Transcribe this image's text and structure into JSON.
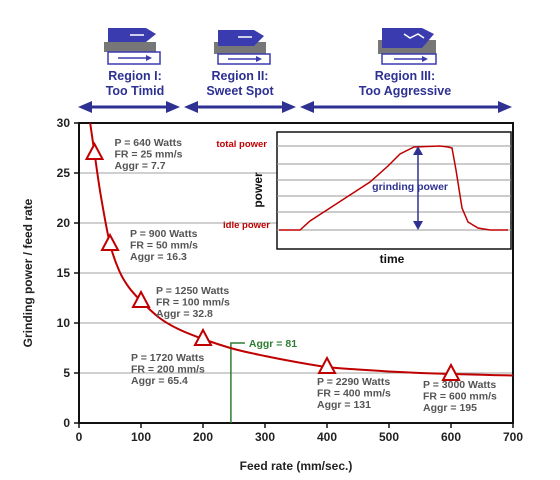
{
  "regions": [
    {
      "name": "Region I:",
      "desc": "Too Timid"
    },
    {
      "name": "Region II:",
      "desc": "Sweet Spot"
    },
    {
      "name": "Region III:",
      "desc": "Too Aggressive"
    }
  ],
  "icons": [
    "grinding-wheel-timid-icon",
    "grinding-wheel-sweet-spot-icon",
    "grinding-wheel-aggressive-icon"
  ],
  "colors": {
    "curve": "#c00000",
    "region_arrow": "#2e3192",
    "aggr_line": "#2e7d32",
    "grid": "#a0a0a0"
  },
  "chart_data": {
    "type": "line",
    "xlabel": "Feed rate (mm/sec.)",
    "ylabel": "Grinding power / feed rate",
    "xlim": [
      0,
      700
    ],
    "ylim": [
      0,
      30
    ],
    "xticks": [
      "0",
      "100",
      "200",
      "300",
      "400",
      "500",
      "600",
      "700"
    ],
    "yticks": [
      "0",
      "5",
      "10",
      "15",
      "20",
      "25",
      "30"
    ],
    "grid": "horizontal",
    "points": [
      {
        "x": 25,
        "y": 27.0,
        "lines": [
          "P = 640 Watts",
          "FR = 25 mm/s",
          "Aggr = 7.7"
        ]
      },
      {
        "x": 50,
        "y": 17.9,
        "lines": [
          "P = 900 Watts",
          "FR = 50 mm/s",
          "Aggr = 16.3"
        ]
      },
      {
        "x": 100,
        "y": 12.2,
        "lines": [
          "P = 1250 Watts",
          "FR = 100 mm/s",
          "Aggr = 32.8"
        ]
      },
      {
        "x": 200,
        "y": 8.4,
        "lines": [
          "P = 1720 Watts",
          "FR = 200 mm/s",
          "Aggr = 65.4"
        ]
      },
      {
        "x": 400,
        "y": 5.6,
        "lines": [
          "P = 2290 Watts",
          "FR = 400 mm/s",
          "Aggr = 131"
        ]
      },
      {
        "x": 600,
        "y": 4.9,
        "lines": [
          "P = 3000 Watts",
          "FR = 600 mm/s",
          "Aggr = 195"
        ]
      }
    ],
    "curve": [
      {
        "x": 18,
        "y": 30
      },
      {
        "x": 25,
        "y": 27.0
      },
      {
        "x": 35,
        "y": 22.8
      },
      {
        "x": 50,
        "y": 17.9
      },
      {
        "x": 65,
        "y": 15.2
      },
      {
        "x": 80,
        "y": 13.6
      },
      {
        "x": 100,
        "y": 12.2
      },
      {
        "x": 130,
        "y": 10.5
      },
      {
        "x": 160,
        "y": 9.4
      },
      {
        "x": 200,
        "y": 8.4
      },
      {
        "x": 250,
        "y": 7.4
      },
      {
        "x": 300,
        "y": 6.7
      },
      {
        "x": 350,
        "y": 6.1
      },
      {
        "x": 400,
        "y": 5.6
      },
      {
        "x": 450,
        "y": 5.35
      },
      {
        "x": 500,
        "y": 5.15
      },
      {
        "x": 550,
        "y": 5.0
      },
      {
        "x": 600,
        "y": 4.9
      },
      {
        "x": 650,
        "y": 4.82
      },
      {
        "x": 700,
        "y": 4.75
      }
    ],
    "aggr_marker": {
      "x": 245,
      "y": 8.0,
      "label": "Aggr = 81"
    },
    "inset": {
      "xlabel": "time",
      "ylabel": "power",
      "total_label": "total power",
      "idle_label": "idle power",
      "grinding_label": "grinding power"
    }
  }
}
